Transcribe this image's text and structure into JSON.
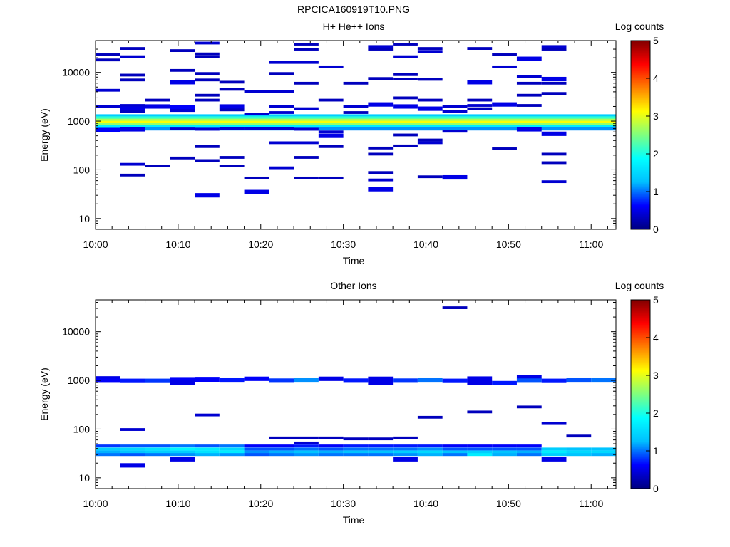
{
  "title": "RPCICA160919T10.PNG",
  "colorbar": {
    "label": "Log counts",
    "ticks": [
      "0",
      "1",
      "2",
      "3",
      "4",
      "5"
    ],
    "stops": [
      "#000080",
      "#0000ff",
      "#00bfff",
      "#00ffff",
      "#7fff7f",
      "#ffff00",
      "#ff7f00",
      "#ff0000",
      "#800000"
    ]
  },
  "time_ticks": [
    "10:00",
    "10:10",
    "10:20",
    "10:30",
    "10:40",
    "10:50",
    "11:00"
  ],
  "energy_ticks": [
    "10",
    "100",
    "1000",
    "10000"
  ],
  "chart_data": [
    {
      "type": "heatmap",
      "title": "H+ He++ Ions",
      "xlabel": "Time",
      "ylabel": "Energy (eV)",
      "xlim": [
        "10:00",
        "11:03"
      ],
      "ylim": [
        6,
        45000
      ],
      "y_scale": "log",
      "z_label": "Log counts",
      "zlim": [
        0,
        5
      ],
      "time_bins": [
        "10:00",
        "10:03",
        "10:06",
        "10:09",
        "10:12",
        "10:15",
        "10:18",
        "10:21",
        "10:24",
        "10:27",
        "10:30",
        "10:33",
        "10:36",
        "10:39",
        "10:42",
        "10:45",
        "10:48",
        "10:51",
        "10:54",
        "10:57",
        "11:00"
      ],
      "cells": [
        {
          "t": "10:00",
          "e": 23000,
          "v": 0.3
        },
        {
          "t": "10:00",
          "e": 18000,
          "v": 0.3
        },
        {
          "t": "10:00",
          "e": 4300,
          "v": 0.4
        },
        {
          "t": "10:00",
          "e": 2000,
          "v": 0.4
        },
        {
          "t": "10:00",
          "e": 650,
          "v": 0.6
        },
        {
          "t": "10:03",
          "e": 31000,
          "v": 0.3
        },
        {
          "t": "10:03",
          "e": 21000,
          "v": 0.4
        },
        {
          "t": "10:03",
          "e": 8800,
          "v": 0.3
        },
        {
          "t": "10:03",
          "e": 7000,
          "v": 0.3
        },
        {
          "t": "10:03",
          "e": 2100,
          "v": 0.4
        },
        {
          "t": "10:03",
          "e": 1800,
          "v": 0.5
        },
        {
          "t": "10:03",
          "e": 1550,
          "v": 0.3
        },
        {
          "t": "10:03",
          "e": 680,
          "v": 0.5
        },
        {
          "t": "10:03",
          "e": 130,
          "v": 0.4
        },
        {
          "t": "10:03",
          "e": 78,
          "v": 0.3
        },
        {
          "t": "10:06",
          "e": 2700,
          "v": 0.3
        },
        {
          "t": "10:06",
          "e": 2000,
          "v": 0.5
        },
        {
          "t": "10:06",
          "e": 120,
          "v": 0.3
        },
        {
          "t": "10:09",
          "e": 28000,
          "v": 0.3
        },
        {
          "t": "10:09",
          "e": 11000,
          "v": 0.3
        },
        {
          "t": "10:09",
          "e": 6300,
          "v": 0.5
        },
        {
          "t": "10:09",
          "e": 1900,
          "v": 0.6
        },
        {
          "t": "10:09",
          "e": 1650,
          "v": 0.4
        },
        {
          "t": "10:09",
          "e": 690,
          "v": 0.4
        },
        {
          "t": "10:09",
          "e": 175,
          "v": 0.3
        },
        {
          "t": "10:12",
          "e": 40000,
          "v": 0.4
        },
        {
          "t": "10:12",
          "e": 24000,
          "v": 0.3
        },
        {
          "t": "10:12",
          "e": 21000,
          "v": 0.3
        },
        {
          "t": "10:12",
          "e": 9500,
          "v": 0.3
        },
        {
          "t": "10:12",
          "e": 7000,
          "v": 0.3
        },
        {
          "t": "10:12",
          "e": 3400,
          "v": 0.3
        },
        {
          "t": "10:12",
          "e": 2700,
          "v": 0.3
        },
        {
          "t": "10:12",
          "e": 680,
          "v": 0.4
        },
        {
          "t": "10:12",
          "e": 300,
          "v": 0.3
        },
        {
          "t": "10:12",
          "e": 155,
          "v": 0.3
        },
        {
          "t": "10:12",
          "e": 30,
          "v": 0.5
        },
        {
          "t": "10:15",
          "e": 6300,
          "v": 0.3
        },
        {
          "t": "10:15",
          "e": 4500,
          "v": 0.3
        },
        {
          "t": "10:15",
          "e": 2000,
          "v": 0.5
        },
        {
          "t": "10:15",
          "e": 1700,
          "v": 0.3
        },
        {
          "t": "10:15",
          "e": 700,
          "v": 0.4
        },
        {
          "t": "10:15",
          "e": 180,
          "v": 0.3
        },
        {
          "t": "10:15",
          "e": 120,
          "v": 0.3
        },
        {
          "t": "10:18",
          "e": 4000,
          "v": 0.4
        },
        {
          "t": "10:18",
          "e": 1400,
          "v": 0.4
        },
        {
          "t": "10:18",
          "e": 700,
          "v": 0.4
        },
        {
          "t": "10:18",
          "e": 35,
          "v": 0.5
        },
        {
          "t": "10:18",
          "e": 68,
          "v": 0.3
        },
        {
          "t": "10:21",
          "e": 16000,
          "v": 0.4
        },
        {
          "t": "10:21",
          "e": 9500,
          "v": 0.3
        },
        {
          "t": "10:21",
          "e": 4000,
          "v": 0.4
        },
        {
          "t": "10:21",
          "e": 2000,
          "v": 0.4
        },
        {
          "t": "10:21",
          "e": 1500,
          "v": 0.4
        },
        {
          "t": "10:21",
          "e": 700,
          "v": 0.4
        },
        {
          "t": "10:21",
          "e": 360,
          "v": 0.4
        },
        {
          "t": "10:21",
          "e": 110,
          "v": 0.4
        },
        {
          "t": "10:24",
          "e": 38000,
          "v": 0.3
        },
        {
          "t": "10:24",
          "e": 30000,
          "v": 0.3
        },
        {
          "t": "10:24",
          "e": 16000,
          "v": 0.4
        },
        {
          "t": "10:24",
          "e": 6000,
          "v": 0.3
        },
        {
          "t": "10:24",
          "e": 1800,
          "v": 0.4
        },
        {
          "t": "10:24",
          "e": 680,
          "v": 0.4
        },
        {
          "t": "10:24",
          "e": 360,
          "v": 0.4
        },
        {
          "t": "10:24",
          "e": 180,
          "v": 0.3
        },
        {
          "t": "10:24",
          "e": 68,
          "v": 0.3
        },
        {
          "t": "10:27",
          "e": 13000,
          "v": 0.4
        },
        {
          "t": "10:27",
          "e": 2700,
          "v": 0.3
        },
        {
          "t": "10:27",
          "e": 600,
          "v": 0.4
        },
        {
          "t": "10:27",
          "e": 500,
          "v": 0.5
        },
        {
          "t": "10:27",
          "e": 300,
          "v": 0.3
        },
        {
          "t": "10:27",
          "e": 68,
          "v": 0.3
        },
        {
          "t": "10:30",
          "e": 6000,
          "v": 0.3
        },
        {
          "t": "10:30",
          "e": 2000,
          "v": 0.4
        },
        {
          "t": "10:30",
          "e": 1500,
          "v": 0.3
        },
        {
          "t": "10:33",
          "e": 34000,
          "v": 0.4
        },
        {
          "t": "10:33",
          "e": 30000,
          "v": 0.3
        },
        {
          "t": "10:33",
          "e": 7500,
          "v": 0.3
        },
        {
          "t": "10:33",
          "e": 2200,
          "v": 0.5
        },
        {
          "t": "10:33",
          "e": 280,
          "v": 0.3
        },
        {
          "t": "10:33",
          "e": 210,
          "v": 0.3
        },
        {
          "t": "10:33",
          "e": 88,
          "v": 0.3
        },
        {
          "t": "10:33",
          "e": 62,
          "v": 0.4
        },
        {
          "t": "10:33",
          "e": 40,
          "v": 0.5
        },
        {
          "t": "10:36",
          "e": 38000,
          "v": 0.3
        },
        {
          "t": "10:36",
          "e": 21000,
          "v": 0.4
        },
        {
          "t": "10:36",
          "e": 9000,
          "v": 0.3
        },
        {
          "t": "10:36",
          "e": 7300,
          "v": 0.3
        },
        {
          "t": "10:36",
          "e": 3000,
          "v": 0.3
        },
        {
          "t": "10:36",
          "e": 2000,
          "v": 0.5
        },
        {
          "t": "10:36",
          "e": 520,
          "v": 0.3
        },
        {
          "t": "10:36",
          "e": 310,
          "v": 0.3
        },
        {
          "t": "10:39",
          "e": 31000,
          "v": 0.3
        },
        {
          "t": "10:39",
          "e": 27000,
          "v": 0.4
        },
        {
          "t": "10:39",
          "e": 7200,
          "v": 0.3
        },
        {
          "t": "10:39",
          "e": 2700,
          "v": 0.3
        },
        {
          "t": "10:39",
          "e": 1800,
          "v": 0.5
        },
        {
          "t": "10:39",
          "e": 410,
          "v": 0.3
        },
        {
          "t": "10:39",
          "e": 360,
          "v": 0.4
        },
        {
          "t": "10:39",
          "e": 72,
          "v": 0.3
        },
        {
          "t": "10:42",
          "e": 2000,
          "v": 0.4
        },
        {
          "t": "10:42",
          "e": 1600,
          "v": 0.4
        },
        {
          "t": "10:42",
          "e": 620,
          "v": 0.4
        },
        {
          "t": "10:42",
          "e": 70,
          "v": 0.5
        },
        {
          "t": "10:45",
          "e": 31000,
          "v": 0.3
        },
        {
          "t": "10:45",
          "e": 6300,
          "v": 0.5
        },
        {
          "t": "10:45",
          "e": 2700,
          "v": 0.3
        },
        {
          "t": "10:45",
          "e": 2100,
          "v": 0.4
        },
        {
          "t": "10:45",
          "e": 1800,
          "v": 0.3
        },
        {
          "t": "10:48",
          "e": 23000,
          "v": 0.3
        },
        {
          "t": "10:48",
          "e": 13000,
          "v": 0.4
        },
        {
          "t": "10:48",
          "e": 2200,
          "v": 0.5
        },
        {
          "t": "10:48",
          "e": 270,
          "v": 0.3
        },
        {
          "t": "10:51",
          "e": 19000,
          "v": 0.5
        },
        {
          "t": "10:51",
          "e": 8300,
          "v": 0.4
        },
        {
          "t": "10:51",
          "e": 6000,
          "v": 0.3
        },
        {
          "t": "10:51",
          "e": 3400,
          "v": 0.3
        },
        {
          "t": "10:51",
          "e": 2100,
          "v": 0.3
        },
        {
          "t": "10:51",
          "e": 680,
          "v": 0.5
        },
        {
          "t": "10:54",
          "e": 34000,
          "v": 0.4
        },
        {
          "t": "10:54",
          "e": 30000,
          "v": 0.3
        },
        {
          "t": "10:54",
          "e": 7300,
          "v": 0.5
        },
        {
          "t": "10:54",
          "e": 6000,
          "v": 0.3
        },
        {
          "t": "10:54",
          "e": 3700,
          "v": 0.3
        },
        {
          "t": "10:54",
          "e": 550,
          "v": 0.5
        },
        {
          "t": "10:54",
          "e": 210,
          "v": 0.3
        },
        {
          "t": "10:54",
          "e": 140,
          "v": 0.3
        },
        {
          "t": "10:54",
          "e": 57,
          "v": 0.4
        },
        {
          "t": "10:00",
          "e": 1270,
          "v": 1.4
        },
        {
          "t": "10:00",
          "e": 1150,
          "v": 2.1
        },
        {
          "t": "10:00",
          "e": 1030,
          "v": 2.7
        },
        {
          "t": "10:00",
          "e": 930,
          "v": 3.1
        },
        {
          "t": "10:00",
          "e": 840,
          "v": 2.6
        },
        {
          "t": "10:00",
          "e": 760,
          "v": 1.7
        },
        {
          "t": "10:00",
          "e": 700,
          "v": 1.1
        }
      ],
      "band_spans_all_bins": true
    },
    {
      "type": "heatmap",
      "title": "Other Ions",
      "xlabel": "Time",
      "ylabel": "Energy (eV)",
      "xlim": [
        "10:00",
        "11:03"
      ],
      "ylim": [
        6,
        45000
      ],
      "y_scale": "log",
      "z_label": "Log counts",
      "zlim": [
        0,
        5
      ],
      "time_bins": [
        "10:00",
        "10:03",
        "10:06",
        "10:09",
        "10:12",
        "10:15",
        "10:18",
        "10:21",
        "10:24",
        "10:27",
        "10:30",
        "10:33",
        "10:36",
        "10:39",
        "10:42",
        "10:45",
        "10:48",
        "10:51",
        "10:54",
        "10:57",
        "11:00"
      ],
      "cells": [
        {
          "t": "10:00",
          "e": 1100,
          "v": 0.5
        },
        {
          "t": "10:00",
          "e": 990,
          "v": 0.6
        },
        {
          "t": "10:03",
          "e": 980,
          "v": 0.7
        },
        {
          "t": "10:06",
          "e": 980,
          "v": 0.8
        },
        {
          "t": "10:09",
          "e": 1020,
          "v": 0.6
        },
        {
          "t": "10:09",
          "e": 900,
          "v": 0.5
        },
        {
          "t": "10:12",
          "e": 1030,
          "v": 0.6
        },
        {
          "t": "10:15",
          "e": 1000,
          "v": 0.7
        },
        {
          "t": "10:18",
          "e": 1080,
          "v": 0.6
        },
        {
          "t": "10:21",
          "e": 990,
          "v": 0.8
        },
        {
          "t": "10:24",
          "e": 1000,
          "v": 1.1
        },
        {
          "t": "10:27",
          "e": 1080,
          "v": 0.5
        },
        {
          "t": "10:30",
          "e": 990,
          "v": 0.7
        },
        {
          "t": "10:33",
          "e": 1080,
          "v": 0.5
        },
        {
          "t": "10:33",
          "e": 900,
          "v": 0.5
        },
        {
          "t": "10:36",
          "e": 990,
          "v": 0.8
        },
        {
          "t": "10:39",
          "e": 1000,
          "v": 1.0
        },
        {
          "t": "10:42",
          "e": 980,
          "v": 0.7
        },
        {
          "t": "10:45",
          "e": 1090,
          "v": 0.5
        },
        {
          "t": "10:45",
          "e": 900,
          "v": 0.5
        },
        {
          "t": "10:48",
          "e": 880,
          "v": 0.7
        },
        {
          "t": "10:51",
          "e": 1160,
          "v": 0.5
        },
        {
          "t": "10:51",
          "e": 990,
          "v": 0.9
        },
        {
          "t": "10:54",
          "e": 980,
          "v": 0.7
        },
        {
          "t": "10:57",
          "e": 1000,
          "v": 0.9
        },
        {
          "t": "11:00",
          "e": 1000,
          "v": 1.0
        },
        {
          "t": "10:03",
          "e": 98,
          "v": 0.4
        },
        {
          "t": "10:03",
          "e": 18,
          "v": 0.5
        },
        {
          "t": "10:09",
          "e": 24,
          "v": 0.5
        },
        {
          "t": "10:12",
          "e": 195,
          "v": 0.4
        },
        {
          "t": "10:21",
          "e": 66,
          "v": 0.3
        },
        {
          "t": "10:24",
          "e": 52,
          "v": 0.4
        },
        {
          "t": "10:24",
          "e": 66,
          "v": 0.3
        },
        {
          "t": "10:27",
          "e": 66,
          "v": 0.3
        },
        {
          "t": "10:30",
          "e": 63,
          "v": 0.3
        },
        {
          "t": "10:33",
          "e": 63,
          "v": 0.3
        },
        {
          "t": "10:36",
          "e": 66,
          "v": 0.3
        },
        {
          "t": "10:36",
          "e": 24,
          "v": 0.5
        },
        {
          "t": "10:39",
          "e": 175,
          "v": 0.3
        },
        {
          "t": "10:42",
          "e": 31000,
          "v": 0.3
        },
        {
          "t": "10:45",
          "e": 225,
          "v": 0.3
        },
        {
          "t": "10:51",
          "e": 285,
          "v": 0.3
        },
        {
          "t": "10:54",
          "e": 130,
          "v": 0.4
        },
        {
          "t": "10:54",
          "e": 24,
          "v": 0.5
        },
        {
          "t": "10:57",
          "e": 72,
          "v": 0.3
        }
      ],
      "low_band": {
        "energies": [
          45,
          39,
          34,
          30
        ],
        "bin_values": [
          [
            0.8,
            1.4,
            1.2,
            1.0
          ],
          [
            0.9,
            1.5,
            1.3,
            0.9
          ],
          [
            0.9,
            1.6,
            1.4,
            1.0
          ],
          [
            1.0,
            1.8,
            1.4,
            1.1
          ],
          [
            0.9,
            1.7,
            1.6,
            1.2
          ],
          [
            1.0,
            1.5,
            1.7,
            1.1
          ],
          [
            0.6,
            0.9,
            1.1,
            0.9
          ],
          [
            0.6,
            0.9,
            1.2,
            1.0
          ],
          [
            0.7,
            1.0,
            1.3,
            1.1
          ],
          [
            0.6,
            0.9,
            1.2,
            1.0
          ],
          [
            0.7,
            1.0,
            1.3,
            1.0
          ],
          [
            0.7,
            1.0,
            1.3,
            1.0
          ],
          [
            0.7,
            1.0,
            1.4,
            1.1
          ],
          [
            0.7,
            1.1,
            1.5,
            1.2
          ],
          [
            0.6,
            0.9,
            1.3,
            1.0
          ],
          [
            0.6,
            0.9,
            1.4,
            1.7
          ],
          [
            0.6,
            0.9,
            1.3,
            1.2
          ],
          [
            0.6,
            0.9,
            1.2,
            1.0
          ],
          [
            0.0,
            1.4,
            1.7,
            1.4
          ],
          [
            0.0,
            1.3,
            1.5,
            1.3
          ],
          [
            0.0,
            1.3,
            1.5,
            1.2
          ]
        ]
      }
    }
  ]
}
